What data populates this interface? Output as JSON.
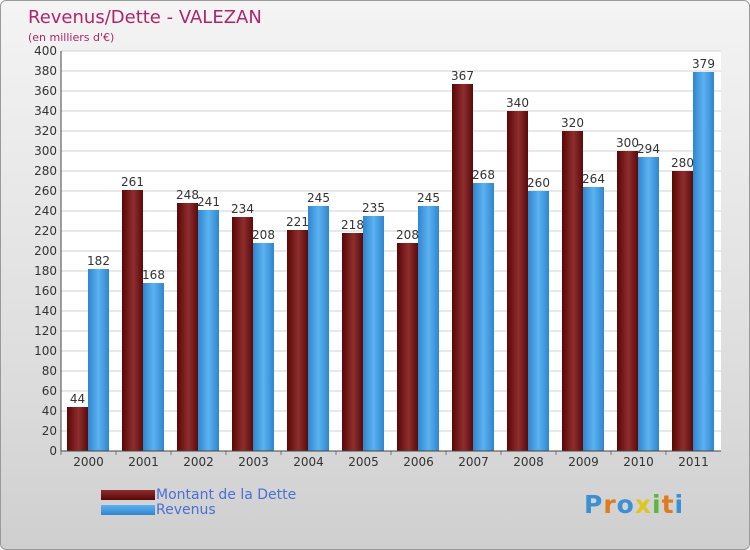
{
  "header": {
    "title": "Revenus/Dette - VALEZAN",
    "subtitle": "(en milliers d'€)"
  },
  "legend": {
    "items": [
      {
        "label": "Montant de la Dette",
        "color": "#6e0e0e"
      },
      {
        "label": "Revenus",
        "color": "#3f9ae0"
      }
    ]
  },
  "logo": {
    "letters": [
      "P",
      "r",
      "o",
      "x",
      "i",
      "t",
      "i"
    ],
    "colors": [
      "#3c8fd3",
      "#e07a1f",
      "#3c8fd3",
      "#e0c51f",
      "#5db83a",
      "#e07a1f",
      "#3c8fd3"
    ]
  },
  "chart_data": {
    "type": "bar",
    "title": "Revenus/Dette - VALEZAN",
    "subtitle": "(en milliers d'€)",
    "categories": [
      "2000",
      "2001",
      "2002",
      "2003",
      "2004",
      "2005",
      "2006",
      "2007",
      "2008",
      "2009",
      "2010",
      "2011"
    ],
    "series": [
      {
        "name": "Montant de la Dette",
        "color": "#7a1c1c",
        "values": [
          44,
          261,
          248,
          234,
          221,
          218,
          208,
          367,
          340,
          320,
          300,
          280
        ]
      },
      {
        "name": "Revenus",
        "color": "#3f9ae0",
        "values": [
          182,
          168,
          241,
          208,
          245,
          235,
          245,
          268,
          260,
          264,
          294,
          379
        ]
      }
    ],
    "ylim": [
      0,
      400
    ],
    "yticks": [
      0,
      20,
      40,
      60,
      80,
      100,
      120,
      140,
      160,
      180,
      200,
      220,
      240,
      260,
      280,
      300,
      320,
      340,
      360,
      380,
      400
    ],
    "grid": true,
    "legend_position": "bottom-left"
  }
}
